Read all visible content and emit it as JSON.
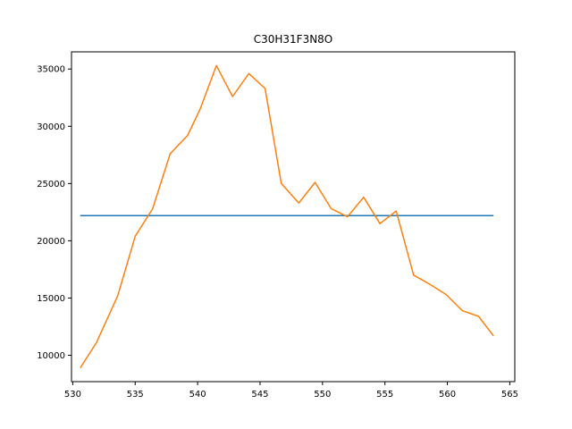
{
  "chart_data": {
    "type": "line",
    "title": "C30H31F3N8O",
    "xlabel": "",
    "ylabel": "",
    "xlim": [
      529.9,
      565.4
    ],
    "ylim": [
      7700,
      36500
    ],
    "xticks": [
      530,
      535,
      540,
      545,
      550,
      555,
      560,
      565
    ],
    "yticks": [
      10000,
      15000,
      20000,
      25000,
      30000,
      35000
    ],
    "grid": false,
    "legend": "none",
    "series": [
      {
        "color": "#1f77b4",
        "x": [
          530.6,
          563.7
        ],
        "y": [
          22200,
          22200
        ]
      },
      {
        "color": "#ff7f0e",
        "x": [
          530.6,
          531.9,
          533.6,
          535.0,
          536.4,
          537.8,
          539.2,
          540.2,
          541.5,
          542.8,
          544.1,
          545.4,
          546.7,
          548.1,
          549.4,
          550.7,
          552.0,
          553.3,
          554.6,
          555.9,
          557.3,
          558.6,
          559.9,
          561.2,
          562.5,
          563.7
        ],
        "y": [
          8900,
          11100,
          15200,
          20400,
          22800,
          27600,
          29200,
          31500,
          35300,
          32600,
          34600,
          33300,
          25000,
          23300,
          25100,
          22800,
          22100,
          23800,
          21500,
          22600,
          17000,
          16200,
          15300,
          13900,
          13400,
          11700
        ]
      }
    ]
  }
}
